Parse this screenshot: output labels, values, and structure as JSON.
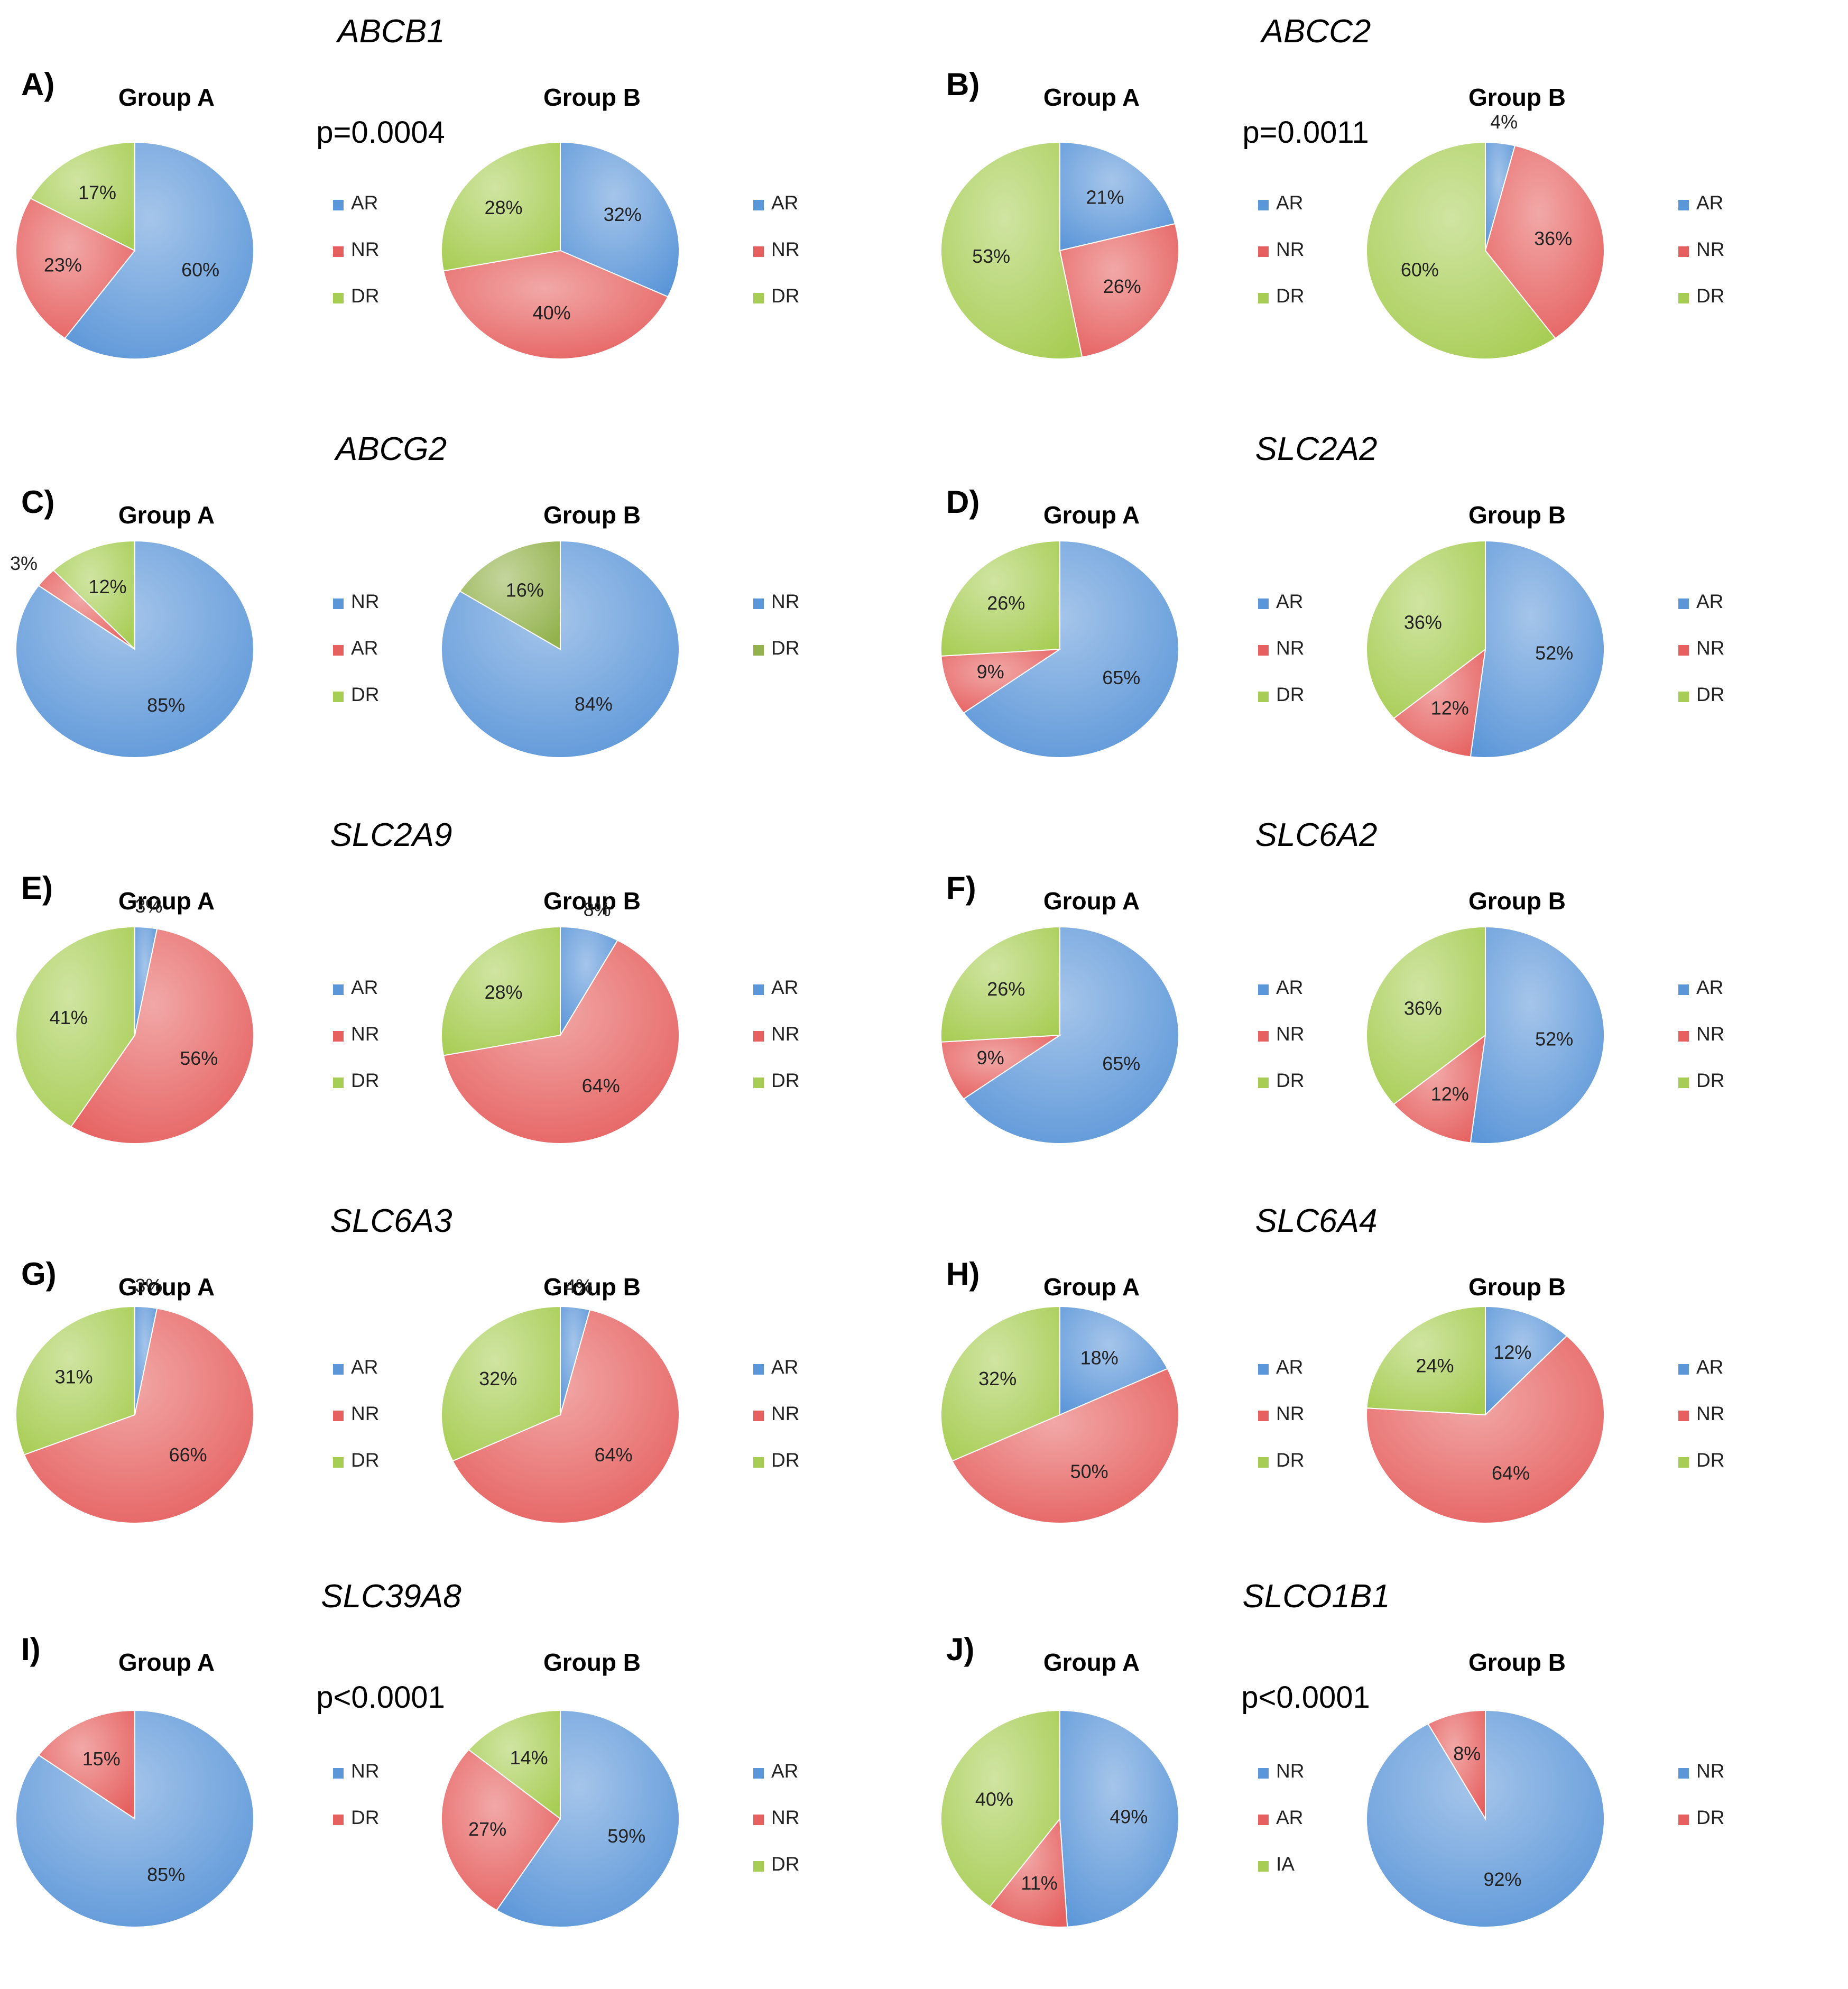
{
  "colors": {
    "AR": "#5b96d8",
    "NR": "#e5605f",
    "DR": "#a8cd55",
    "IA": "#a8cd55",
    "DR_darker": "#93b24d",
    "AR_light": "#a9c9ef",
    "NR_light": "#f3b1b1",
    "DR_light": "#d6eb9f"
  },
  "chart_data": [
    {
      "type": "pie",
      "panel": "A)",
      "gene": "ABCB1",
      "p_value": "p=0.0004",
      "pies": [
        {
          "title": "Group A",
          "slices": [
            {
              "name": "AR",
              "value": 60,
              "label": "60%"
            },
            {
              "name": "NR",
              "value": 23,
              "label": "23%"
            },
            {
              "name": "DR",
              "value": 17,
              "label": "17%"
            }
          ],
          "legend": [
            "AR",
            "NR",
            "DR"
          ]
        },
        {
          "title": "Group B",
          "slices": [
            {
              "name": "AR",
              "value": 32,
              "label": "32%"
            },
            {
              "name": "NR",
              "value": 40,
              "label": "40%"
            },
            {
              "name": "DR",
              "value": 28,
              "label": "28%"
            }
          ],
          "legend": [
            "AR",
            "NR",
            "DR"
          ]
        }
      ]
    },
    {
      "type": "pie",
      "panel": "B)",
      "gene": "ABCC2",
      "p_value": "p=0.0011",
      "pies": [
        {
          "title": "Group A",
          "slices": [
            {
              "name": "AR",
              "value": 21,
              "label": "21%"
            },
            {
              "name": "NR",
              "value": 26,
              "label": "26%"
            },
            {
              "name": "DR",
              "value": 53,
              "label": "53%"
            }
          ],
          "legend": [
            "AR",
            "NR",
            "DR"
          ]
        },
        {
          "title": "Group B",
          "slices": [
            {
              "name": "AR",
              "value": 4,
              "label": "4%",
              "outside": true
            },
            {
              "name": "NR",
              "value": 36,
              "label": "36%"
            },
            {
              "name": "DR",
              "value": 60,
              "label": "60%"
            }
          ],
          "legend": [
            "AR",
            "NR",
            "DR"
          ]
        }
      ]
    },
    {
      "type": "pie",
      "panel": "C)",
      "gene": "ABCG2",
      "p_value": "",
      "pies": [
        {
          "title": "Group A",
          "slices": [
            {
              "name": "NR",
              "color": "AR",
              "value": 85,
              "label": "85%"
            },
            {
              "name": "AR",
              "color": "NR",
              "value": 3,
              "label": "3%",
              "outside": true
            },
            {
              "name": "DR",
              "color": "DR",
              "value": 12,
              "label": "12%"
            }
          ],
          "legend": [
            "NR",
            "AR",
            "DR"
          ],
          "legend_colors": [
            "AR",
            "NR",
            "DR"
          ]
        },
        {
          "title": "Group B",
          "slices": [
            {
              "name": "NR",
              "color": "AR",
              "value": 84,
              "label": "84%"
            },
            {
              "name": "DR",
              "color": "DR_darker",
              "value": 16,
              "label": "16%"
            }
          ],
          "legend": [
            "NR",
            "DR"
          ],
          "legend_colors": [
            "AR",
            "DR_darker"
          ]
        }
      ]
    },
    {
      "type": "pie",
      "panel": "D)",
      "gene": "SLC2A2",
      "p_value": "",
      "pies": [
        {
          "title": "Group A",
          "slices": [
            {
              "name": "AR",
              "value": 65,
              "label": "65%"
            },
            {
              "name": "NR",
              "value": 9,
              "label": "9%"
            },
            {
              "name": "DR",
              "value": 26,
              "label": "26%"
            }
          ],
          "legend": [
            "AR",
            "NR",
            "DR"
          ]
        },
        {
          "title": "Group B",
          "slices": [
            {
              "name": "AR",
              "value": 52,
              "label": "52%"
            },
            {
              "name": "NR",
              "value": 12,
              "label": "12%"
            },
            {
              "name": "DR",
              "value": 36,
              "label": "36%"
            }
          ],
          "legend": [
            "AR",
            "NR",
            "DR"
          ]
        }
      ]
    },
    {
      "type": "pie",
      "panel": "E)",
      "gene": "SLC2A9",
      "p_value": "",
      "pies": [
        {
          "title": "Group A",
          "slices": [
            {
              "name": "AR",
              "value": 3,
              "label": "3%",
              "outside": true
            },
            {
              "name": "NR",
              "value": 56,
              "label": "56%"
            },
            {
              "name": "DR",
              "value": 41,
              "label": "41%"
            }
          ],
          "legend": [
            "AR",
            "NR",
            "DR"
          ]
        },
        {
          "title": "Group B",
          "slices": [
            {
              "name": "AR",
              "value": 8,
              "label": "8%",
              "outside": true
            },
            {
              "name": "NR",
              "value": 64,
              "label": "64%"
            },
            {
              "name": "DR",
              "value": 28,
              "label": "28%"
            }
          ],
          "legend": [
            "AR",
            "NR",
            "DR"
          ]
        }
      ]
    },
    {
      "type": "pie",
      "panel": "F)",
      "gene": "SLC6A2",
      "p_value": "",
      "pies": [
        {
          "title": "Group A",
          "slices": [
            {
              "name": "AR",
              "value": 65,
              "label": "65%"
            },
            {
              "name": "NR",
              "value": 9,
              "label": "9%"
            },
            {
              "name": "DR",
              "value": 26,
              "label": "26%"
            }
          ],
          "legend": [
            "AR",
            "NR",
            "DR"
          ]
        },
        {
          "title": "Group B",
          "slices": [
            {
              "name": "AR",
              "value": 52,
              "label": "52%"
            },
            {
              "name": "NR",
              "value": 12,
              "label": "12%"
            },
            {
              "name": "DR",
              "value": 36,
              "label": "36%"
            }
          ],
          "legend": [
            "AR",
            "NR",
            "DR"
          ]
        }
      ]
    },
    {
      "type": "pie",
      "panel": "G)",
      "gene": "SLC6A3",
      "p_value": "",
      "pies": [
        {
          "title": "Group A",
          "slices": [
            {
              "name": "AR",
              "value": 3,
              "label": "3%",
              "outside": true
            },
            {
              "name": "NR",
              "value": 66,
              "label": "66%"
            },
            {
              "name": "DR",
              "value": 31,
              "label": "31%"
            }
          ],
          "legend": [
            "AR",
            "NR",
            "DR"
          ]
        },
        {
          "title": "Group B",
          "slices": [
            {
              "name": "AR",
              "value": 4,
              "label": "4%",
              "outside": true
            },
            {
              "name": "NR",
              "value": 64,
              "label": "64%"
            },
            {
              "name": "DR",
              "value": 32,
              "label": "32%"
            }
          ],
          "legend": [
            "AR",
            "NR",
            "DR"
          ]
        }
      ]
    },
    {
      "type": "pie",
      "panel": "H)",
      "gene": "SLC6A4",
      "p_value": "",
      "pies": [
        {
          "title": "Group A",
          "slices": [
            {
              "name": "AR",
              "value": 18,
              "label": "18%"
            },
            {
              "name": "NR",
              "value": 50,
              "label": "50%"
            },
            {
              "name": "DR",
              "value": 32,
              "label": "32%"
            }
          ],
          "legend": [
            "AR",
            "NR",
            "DR"
          ]
        },
        {
          "title": "Group B",
          "slices": [
            {
              "name": "AR",
              "value": 12,
              "label": "12%"
            },
            {
              "name": "NR",
              "value": 64,
              "label": "64%"
            },
            {
              "name": "DR",
              "value": 24,
              "label": "24%"
            }
          ],
          "legend": [
            "AR",
            "NR",
            "DR"
          ]
        }
      ]
    },
    {
      "type": "pie",
      "panel": "I)",
      "gene": "SLC39A8",
      "p_value": "p<0.0001",
      "pies": [
        {
          "title": "Group A",
          "slices": [
            {
              "name": "NR",
              "color": "AR",
              "value": 85,
              "label": "85%"
            },
            {
              "name": "DR",
              "color": "NR",
              "value": 15,
              "label": "15%"
            }
          ],
          "legend": [
            "NR",
            "DR"
          ],
          "legend_colors": [
            "AR",
            "NR"
          ]
        },
        {
          "title": "Group B",
          "slices": [
            {
              "name": "AR",
              "value": 59,
              "label": "59%"
            },
            {
              "name": "NR",
              "value": 27,
              "label": "27%"
            },
            {
              "name": "DR",
              "value": 14,
              "label": "14%"
            }
          ],
          "legend": [
            "AR",
            "NR",
            "DR"
          ]
        }
      ]
    },
    {
      "type": "pie",
      "panel": "J)",
      "gene": "SLCO1B1",
      "p_value": "p<0.0001",
      "pies": [
        {
          "title": "Group A",
          "slices": [
            {
              "name": "NR",
              "color": "AR",
              "value": 49,
              "label": "49%"
            },
            {
              "name": "AR",
              "color": "NR",
              "value": 11,
              "label": "11%"
            },
            {
              "name": "IA",
              "color": "DR",
              "value": 40,
              "label": "40%"
            }
          ],
          "legend": [
            "NR",
            "AR",
            "IA"
          ],
          "legend_colors": [
            "AR",
            "NR",
            "DR"
          ]
        },
        {
          "title": "Group B",
          "slices": [
            {
              "name": "NR",
              "color": "AR",
              "value": 92,
              "label": "92%"
            },
            {
              "name": "DR",
              "color": "NR",
              "value": 8,
              "label": "8%"
            }
          ],
          "legend": [
            "NR",
            "DR"
          ],
          "legend_colors": [
            "AR",
            "NR"
          ]
        }
      ]
    }
  ]
}
